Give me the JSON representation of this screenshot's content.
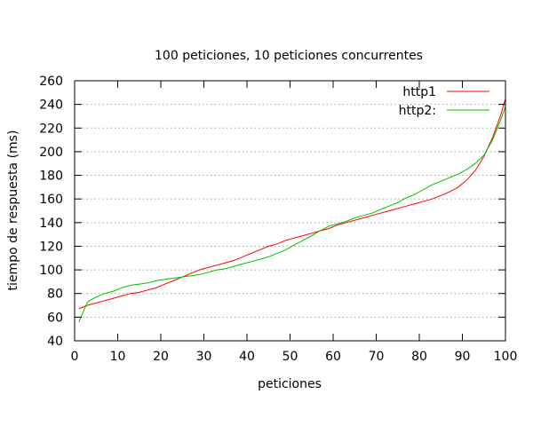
{
  "chart_data": {
    "type": "line",
    "title": "100 peticiones, 10 peticiones concurrentes",
    "xlabel": "peticiones",
    "ylabel": "tiempo de respuesta (ms)",
    "xlim": [
      0,
      100
    ],
    "ylim": [
      40,
      260
    ],
    "xticks": [
      0,
      10,
      20,
      30,
      40,
      50,
      60,
      70,
      80,
      90,
      100
    ],
    "yticks": [
      40,
      60,
      80,
      100,
      120,
      140,
      160,
      180,
      200,
      220,
      240,
      260
    ],
    "grid": "horizontal dotted",
    "legend_position": "top-right",
    "series": [
      {
        "name": "http1",
        "color": "#ff0000",
        "x": [
          1,
          3,
          5,
          7,
          9,
          11,
          13,
          15,
          17,
          19,
          21,
          23,
          25,
          27,
          29,
          31,
          33,
          35,
          37,
          39,
          41,
          43,
          45,
          47,
          49,
          51,
          53,
          55,
          57,
          59,
          61,
          63,
          65,
          67,
          69,
          71,
          73,
          75,
          77,
          79,
          81,
          83,
          85,
          87,
          89,
          91,
          93,
          95,
          97,
          99,
          100
        ],
        "y": [
          67,
          70,
          72,
          74,
          76,
          78,
          80,
          81,
          83,
          85,
          88,
          91,
          94,
          97,
          100,
          102,
          104,
          106,
          108,
          111,
          114,
          117,
          120,
          122,
          125,
          127,
          129,
          131,
          133,
          135,
          138,
          140,
          142,
          144,
          146,
          148,
          150,
          152,
          154,
          156,
          158,
          160,
          163,
          166,
          170,
          176,
          184,
          196,
          212,
          232,
          245
        ]
      },
      {
        "name": "http2:",
        "color": "#00c000",
        "x": [
          1,
          3,
          5,
          7,
          9,
          11,
          13,
          15,
          17,
          19,
          21,
          23,
          25,
          27,
          29,
          31,
          33,
          35,
          37,
          39,
          41,
          43,
          45,
          47,
          49,
          51,
          53,
          55,
          57,
          59,
          61,
          63,
          65,
          67,
          69,
          71,
          73,
          75,
          77,
          79,
          81,
          83,
          85,
          87,
          89,
          91,
          93,
          95,
          97,
          99,
          100
        ],
        "y": [
          56,
          73,
          77,
          80,
          82,
          85,
          87,
          88,
          89,
          91,
          92,
          93,
          94,
          95,
          96,
          98,
          100,
          101,
          103,
          105,
          107,
          109,
          111,
          114,
          117,
          121,
          125,
          129,
          133,
          137,
          139,
          141,
          144,
          146,
          148,
          151,
          154,
          157,
          161,
          164,
          168,
          172,
          175,
          178,
          181,
          185,
          190,
          197,
          210,
          228,
          238
        ]
      }
    ]
  }
}
